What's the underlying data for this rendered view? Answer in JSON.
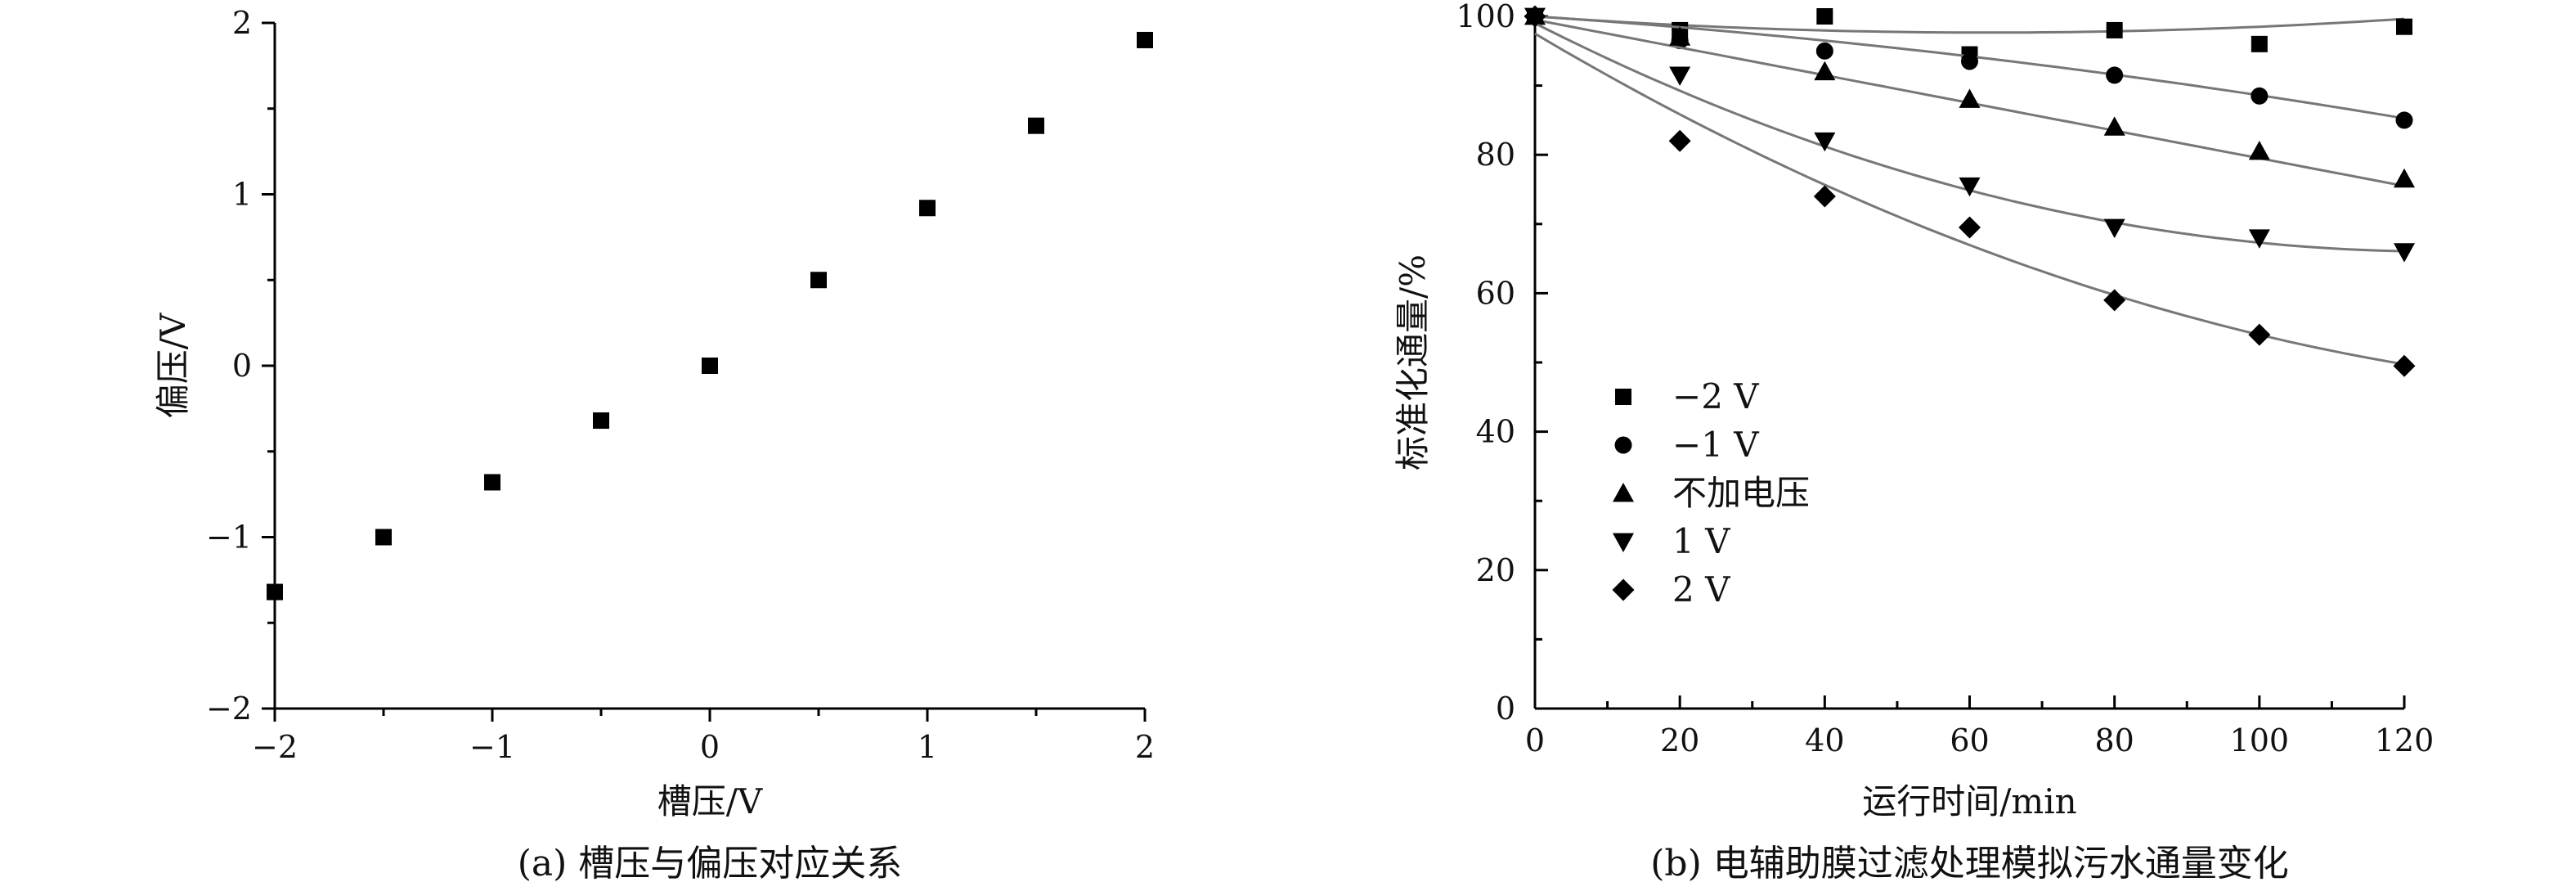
{
  "chart_data": [
    {
      "type": "scatter",
      "caption": "(a) 槽压与偏压对应关系",
      "xlabel": "槽压/V",
      "ylabel": "偏压/V",
      "xlim": [
        -2,
        2
      ],
      "ylim": [
        -2,
        2
      ],
      "xticks": [
        -2,
        -1,
        0,
        1,
        2
      ],
      "yticks": [
        -2,
        -1,
        0,
        1,
        2
      ],
      "xtick_labels": [
        "−2",
        "−1",
        "0",
        "1",
        "2"
      ],
      "ytick_labels": [
        "−2",
        "−1",
        "0",
        "1",
        "2"
      ],
      "grid": false,
      "series": [
        {
          "marker": "square",
          "x": [
            -2,
            -1.5,
            -1,
            -0.5,
            0,
            0.5,
            1,
            1.5,
            2
          ],
          "y": [
            -1.32,
            -1.0,
            -0.68,
            -0.32,
            0.0,
            0.5,
            0.92,
            1.4,
            1.9
          ]
        }
      ]
    },
    {
      "type": "scatter",
      "caption": "(b) 电辅助膜过滤处理模拟污水通量变化",
      "xlabel": "运行时间/min",
      "ylabel": "标准化通量/%",
      "xlim": [
        0,
        120
      ],
      "ylim": [
        0,
        100
      ],
      "xticks": [
        0,
        20,
        40,
        60,
        80,
        100,
        120
      ],
      "yticks": [
        0,
        20,
        40,
        60,
        80,
        100
      ],
      "xtick_labels": [
        "0",
        "20",
        "40",
        "60",
        "80",
        "100",
        "120"
      ],
      "ytick_labels": [
        "0",
        "20",
        "40",
        "60",
        "80",
        "100"
      ],
      "grid": false,
      "legend_position": "lower-left",
      "series": [
        {
          "name": "−2 V",
          "marker": "square",
          "x": [
            0,
            20,
            40,
            60,
            80,
            100,
            120
          ],
          "y": [
            100,
            98,
            100,
            94.5,
            98,
            96,
            98.5
          ],
          "fit": [
            100,
            -0.075,
            0.0006
          ]
        },
        {
          "name": "−1 V",
          "marker": "circle",
          "x": [
            0,
            20,
            40,
            60,
            80,
            100,
            120
          ],
          "y": [
            100,
            96.5,
            95,
            93.5,
            91.5,
            88.5,
            85
          ],
          "fit": [
            100,
            -0.07,
            -0.00044
          ]
        },
        {
          "name": "不加电压",
          "marker": "triangle-up",
          "x": [
            0,
            20,
            40,
            60,
            80,
            100,
            120
          ],
          "y": [
            100,
            97,
            92,
            88,
            84,
            80.5,
            76.5
          ],
          "fit": [
            99.5,
            -0.2,
            0
          ]
        },
        {
          "name": "1 V",
          "marker": "triangle-down",
          "x": [
            0,
            20,
            40,
            60,
            80,
            100,
            120
          ],
          "y": [
            100,
            91.5,
            82,
            75.5,
            69.5,
            68,
            66
          ],
          "fit": [
            99,
            -0.53,
            0.00213
          ]
        },
        {
          "name": "2 V",
          "marker": "diamond",
          "x": [
            0,
            20,
            40,
            60,
            80,
            100,
            120
          ],
          "y": [
            100,
            82,
            74,
            69.5,
            59,
            54,
            49.5
          ],
          "fit": [
            97.5,
            -0.62,
            0.00185
          ]
        }
      ]
    }
  ]
}
